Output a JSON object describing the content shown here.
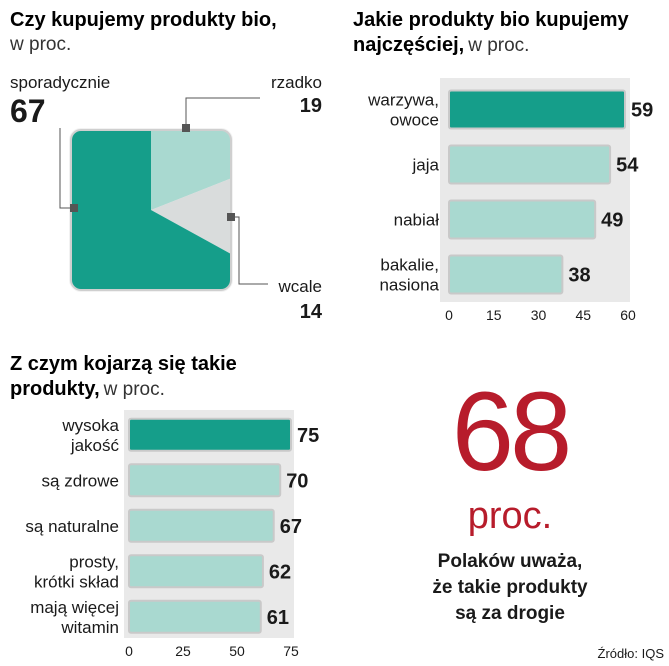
{
  "colors": {
    "teal": "#159e8a",
    "light_teal": "#a9d9d0",
    "gray": "#d9dcdc",
    "dark_red": "#b71c2b",
    "bg_panel": "#e9e9e9"
  },
  "chart_data": [
    {
      "type": "pie",
      "title": "Czy kupujemy produkty bio,",
      "subtitle": "w proc.",
      "slices": [
        {
          "label": "sporadycznie",
          "value": 67,
          "color": "#159e8a"
        },
        {
          "label": "rzadko",
          "value": 19,
          "color": "#a9d9d0"
        },
        {
          "label": "wcale",
          "value": 14,
          "color": "#d9dcdc"
        }
      ]
    },
    {
      "type": "bar",
      "orientation": "horizontal",
      "title_line1": "Jakie produkty bio kupujemy",
      "title_line2": "najczęściej,",
      "subtitle": "w proc.",
      "categories": [
        [
          "warzywa,",
          "owoce"
        ],
        [
          "jaja"
        ],
        [
          "nabiał"
        ],
        [
          "bakalie,",
          "nasiona"
        ]
      ],
      "values": [
        59,
        54,
        49,
        38
      ],
      "xlim": [
        0,
        60
      ],
      "ticks": [
        0,
        15,
        30,
        45,
        60
      ]
    },
    {
      "type": "bar",
      "orientation": "horizontal",
      "title_line1": "Z czym kojarzą się takie",
      "title_line2": "produkty,",
      "subtitle": "w proc.",
      "categories": [
        [
          "wysoka",
          "jakość"
        ],
        [
          "są zdrowe"
        ],
        [
          "są naturalne"
        ],
        [
          "prosty,",
          "krótki skład"
        ],
        [
          "mają więcej",
          "witamin"
        ]
      ],
      "values": [
        75,
        70,
        67,
        62,
        61
      ],
      "xlim": [
        0,
        75
      ],
      "ticks": [
        0,
        25,
        50,
        75
      ]
    }
  ],
  "callout": {
    "number": "68",
    "unit": "proc.",
    "lines": [
      "Polaków uważa,",
      "że takie produkty",
      "są za drogie"
    ]
  },
  "source": "Źródło: IQS"
}
